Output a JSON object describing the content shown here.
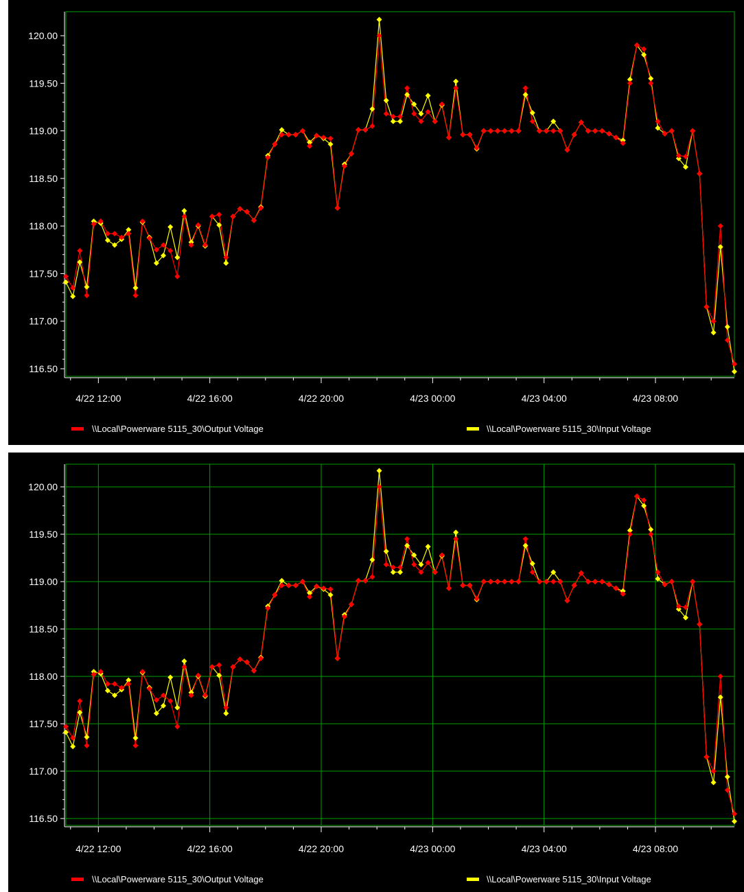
{
  "legend": {
    "output_label": "\\\\Local\\Powerware 5115_30\\Output Voltage",
    "input_label": "\\\\Local\\Powerware 5115_30\\Input Voltage"
  },
  "colors": {
    "background": "#000000",
    "plot_border": "#00a000",
    "grid": "#00a000",
    "axis": "#ffffff",
    "output": "#ff0000",
    "input": "#ffff00"
  },
  "chart_data": [
    {
      "type": "line",
      "title": "",
      "grid": false,
      "legend_position": "bottom",
      "x_start": "4/22 10:50",
      "x_end": "4/23 10:50",
      "x_interval_minutes": 15,
      "x_tick_labels": [
        "4/22 12:00",
        "4/22 16:00",
        "4/22 20:00",
        "4/23 00:00",
        "4/23 04:00",
        "4/23 08:00"
      ],
      "y_tick_labels": [
        "120.00",
        "119.50",
        "119.00",
        "118.50",
        "118.00",
        "117.50",
        "117.00",
        "116.50"
      ],
      "ylim": [
        116.4,
        120.25
      ],
      "series": [
        {
          "name": "\\\\Local\\Powerware 5115_30\\Output Voltage",
          "color": "#ff0000",
          "values": [
            117.47,
            117.35,
            117.74,
            117.27,
            118.02,
            118.05,
            117.92,
            117.92,
            117.88,
            117.92,
            117.27,
            118.05,
            117.87,
            117.75,
            117.8,
            117.74,
            117.47,
            118.1,
            117.8,
            118.01,
            117.8,
            118.1,
            118.12,
            117.67,
            118.1,
            118.18,
            118.15,
            118.06,
            118.19,
            118.72,
            118.86,
            118.96,
            118.96,
            118.96,
            119.0,
            118.84,
            118.95,
            118.93,
            118.92,
            118.19,
            118.63,
            118.76,
            119.01,
            119.01,
            119.05,
            120.0,
            119.18,
            119.15,
            119.15,
            119.45,
            119.18,
            119.1,
            119.2,
            119.1,
            119.28,
            118.93,
            119.45,
            118.96,
            118.96,
            118.82,
            119.0,
            119.0,
            119.0,
            119.0,
            119.0,
            119.0,
            119.45,
            119.1,
            119.0,
            119.0,
            119.0,
            119.0,
            118.8,
            118.96,
            119.09,
            119.0,
            119.0,
            119.0,
            118.97,
            118.93,
            118.87,
            119.5,
            119.9,
            119.86,
            119.5,
            119.1,
            118.97,
            119.0,
            118.74,
            118.73,
            119.0,
            118.55,
            117.15,
            117.0,
            118.0,
            116.8,
            116.55
          ]
        },
        {
          "name": "\\\\Local\\Powerware 5115_30\\Input Voltage",
          "color": "#ffff00",
          "values": [
            117.41,
            117.26,
            117.62,
            117.36,
            118.05,
            118.03,
            117.85,
            117.8,
            117.86,
            117.96,
            117.35,
            118.04,
            117.88,
            117.61,
            117.69,
            117.99,
            117.67,
            118.16,
            117.83,
            118.0,
            117.79,
            118.1,
            118.01,
            117.61,
            118.1,
            118.18,
            118.15,
            118.06,
            118.2,
            118.74,
            118.86,
            119.01,
            118.96,
            118.96,
            119.0,
            118.88,
            118.95,
            118.92,
            118.86,
            118.19,
            118.65,
            118.76,
            119.01,
            119.01,
            119.23,
            120.17,
            119.32,
            119.1,
            119.1,
            119.38,
            119.28,
            119.18,
            119.37,
            119.1,
            119.27,
            118.93,
            119.52,
            118.96,
            118.96,
            118.81,
            119.0,
            119.0,
            119.0,
            119.0,
            119.0,
            119.0,
            119.38,
            119.19,
            119.0,
            119.0,
            119.1,
            119.0,
            118.8,
            118.96,
            119.09,
            119.0,
            119.0,
            119.0,
            118.97,
            118.93,
            118.9,
            119.54,
            119.9,
            119.8,
            119.55,
            119.03,
            118.97,
            119.0,
            118.71,
            118.62,
            119.0,
            118.55,
            117.15,
            116.88,
            117.78,
            116.94,
            116.47
          ]
        }
      ]
    },
    {
      "type": "line",
      "title": "",
      "grid": true,
      "legend_position": "bottom",
      "x_start": "4/22 10:50",
      "x_end": "4/23 10:50",
      "x_interval_minutes": 15,
      "x_tick_labels": [
        "4/22 12:00",
        "4/22 16:00",
        "4/22 20:00",
        "4/23 00:00",
        "4/23 04:00",
        "4/23 08:00"
      ],
      "y_tick_labels": [
        "120.00",
        "119.50",
        "119.00",
        "118.50",
        "118.00",
        "117.50",
        "117.00",
        "116.50"
      ],
      "ylim": [
        116.4,
        120.25
      ],
      "series_same_as_chart_index": 0
    }
  ]
}
